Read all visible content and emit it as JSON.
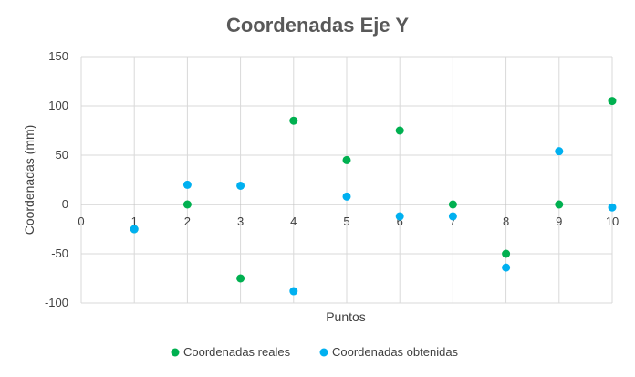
{
  "chart_data": {
    "type": "scatter",
    "title": "Coordenadas Eje Y",
    "xlabel": "Puntos",
    "ylabel": "Coordenadas (mm)",
    "xlim": [
      0,
      10
    ],
    "ylim": [
      -100,
      150
    ],
    "x_ticks": [
      0,
      1,
      2,
      3,
      4,
      5,
      6,
      7,
      8,
      9,
      10
    ],
    "y_ticks": [
      -100,
      -50,
      0,
      50,
      100,
      150
    ],
    "grid": true,
    "legend_position": "bottom",
    "series": [
      {
        "name": "Coordenadas reales",
        "color": "#00b050",
        "x": [
          1,
          2,
          3,
          4,
          5,
          6,
          7,
          8,
          9,
          10
        ],
        "y": [
          -25,
          0,
          -75,
          85,
          45,
          75,
          0,
          -50,
          0,
          105
        ]
      },
      {
        "name": "Coordenadas obtenidas",
        "color": "#00b0f0",
        "x": [
          1,
          2,
          3,
          4,
          5,
          6,
          7,
          8,
          9,
          10
        ],
        "y": [
          -25,
          20,
          19,
          -88,
          8,
          -12,
          -12,
          -64,
          54,
          -3
        ]
      }
    ]
  }
}
